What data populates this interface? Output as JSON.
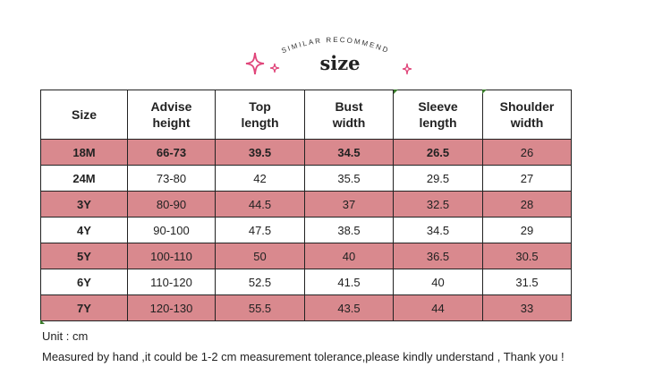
{
  "header": {
    "arc_text": "SIMILAR RECOMMEND",
    "title": "size"
  },
  "colors": {
    "sparkle": "#e0457a",
    "row_highlight": "#d9898e",
    "corner_marker": "#3a7d2c"
  },
  "table": {
    "columns": [
      "Size",
      "Advise\nheight",
      "Top\nlength",
      "Bust\nwidth",
      "Sleeve\nlength",
      "Shoulder\nwidth"
    ],
    "rows": [
      [
        "18M",
        "66-73",
        "39.5",
        "34.5",
        "26.5",
        "26"
      ],
      [
        "24M",
        "73-80",
        "42",
        "35.5",
        "29.5",
        "27"
      ],
      [
        "3Y",
        "80-90",
        "44.5",
        "37",
        "32.5",
        "28"
      ],
      [
        "4Y",
        "90-100",
        "47.5",
        "38.5",
        "34.5",
        "29"
      ],
      [
        "5Y",
        "100-110",
        "50",
        "40",
        "36.5",
        "30.5"
      ],
      [
        "6Y",
        "110-120",
        "52.5",
        "41.5",
        "40",
        "31.5"
      ],
      [
        "7Y",
        "120-130",
        "55.5",
        "43.5",
        "44",
        "33"
      ]
    ]
  },
  "notes": {
    "unit": "Unit : cm",
    "disclaimer": "Measured by hand ,it could be 1-2 cm measurement tolerance,please kindly understand , Thank you !"
  }
}
